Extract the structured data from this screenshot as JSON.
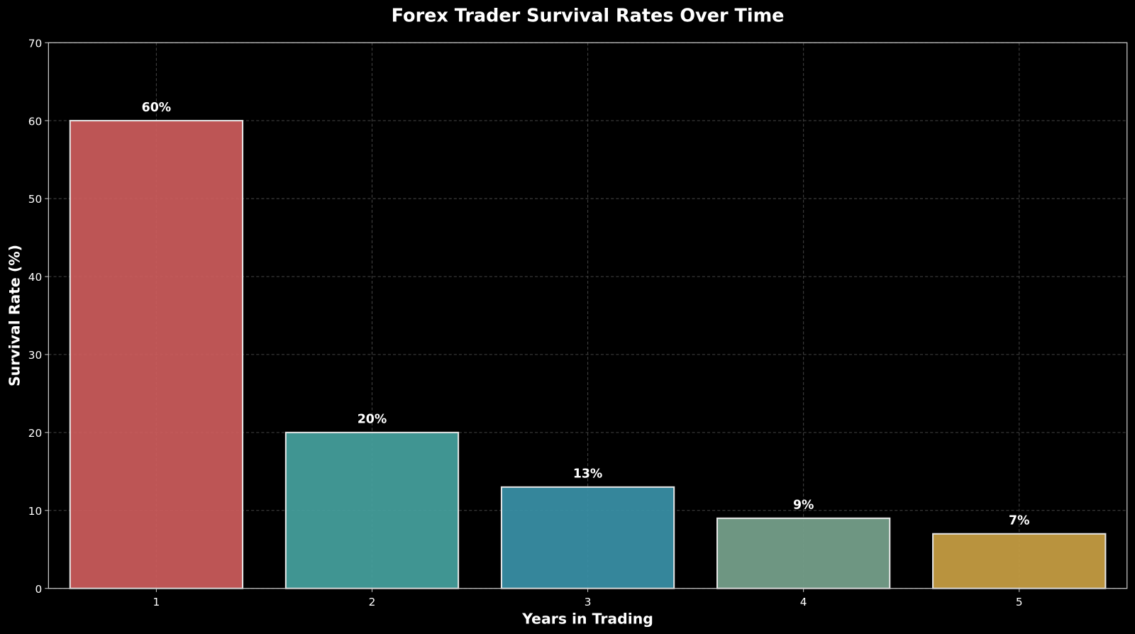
{
  "chart_data": {
    "type": "bar",
    "title": "Forex Trader Survival Rates Over Time",
    "xlabel": "Years in Trading",
    "ylabel": "Survival Rate (%)",
    "categories": [
      "1",
      "2",
      "3",
      "4",
      "5"
    ],
    "values": [
      60,
      20,
      13,
      9,
      7
    ],
    "data_labels": [
      "60%",
      "20%",
      "13%",
      "9%",
      "7%"
    ],
    "colors": [
      "#CD5C5C",
      "#45A29E",
      "#3A91A8",
      "#77A38D",
      "#C9A043"
    ],
    "ylim": [
      0,
      70
    ],
    "yticks": [
      0,
      10,
      20,
      30,
      40,
      50,
      60,
      70
    ],
    "grid": true,
    "background": "#000000"
  }
}
